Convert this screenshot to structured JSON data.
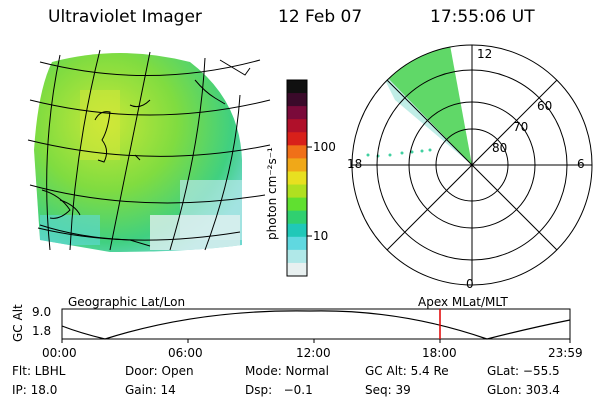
{
  "header": {
    "instrument": "Ultraviolet Imager",
    "date": "12 Feb 07",
    "time": "17:55:06 UT"
  },
  "colorbar": {
    "unit_label": "photon cm⁻²s⁻¹",
    "ticks": [
      "100",
      "10"
    ],
    "colors": [
      "#101010",
      "#3a0a2a",
      "#7a0a3a",
      "#b0102a",
      "#d8201a",
      "#f07018",
      "#f0a818",
      "#e8e020",
      "#b0e020",
      "#60e030",
      "#30d070",
      "#20c8b8",
      "#60d8e0",
      "#b0e8e8",
      "#e8f0f0"
    ]
  },
  "polar_plot": {
    "mlt_labels": {
      "top": "12",
      "left": "18",
      "right": "6",
      "bottom": "0"
    },
    "lat_labels": [
      "60",
      "70",
      "80"
    ]
  },
  "altitude_panel": {
    "left_title": "Geographic Lat/Lon",
    "right_title": "Apex MLat/MLT",
    "ylabel": "GC Alt",
    "yticks": [
      "9.0",
      "1.8"
    ],
    "xticks": [
      "00:00",
      "06:00",
      "12:00",
      "18:00",
      "23:59"
    ],
    "marker_color": "#e00000"
  },
  "status": {
    "filter": "Flt: LBHL",
    "door": "Door: Open",
    "mode": "Mode: Normal",
    "gc_alt": "GC Alt: 5.4 Re",
    "glat": "GLat: −55.5",
    "ip": "IP: 18.0",
    "gain": "Gain: 14",
    "dsp": "Dsp:   −0.1",
    "seq": "Seq: 39",
    "glon": "GLon: 303.4"
  }
}
